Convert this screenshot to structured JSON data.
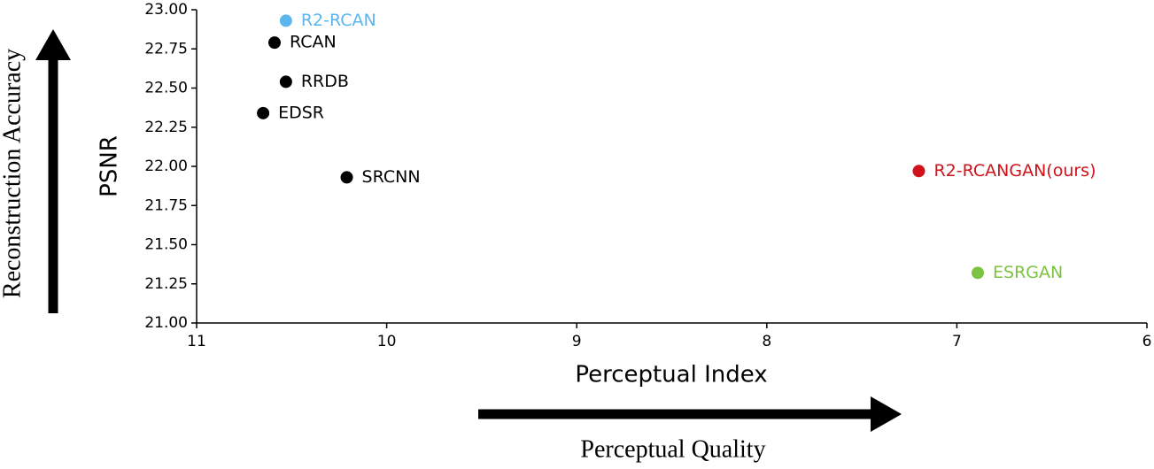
{
  "chart_data": {
    "type": "scatter",
    "xlabel": "Perceptual Index",
    "ylabel": "PSNR",
    "annotations": [
      "Reconstruction Accuracy",
      "Perceptual Quality"
    ],
    "xlim": [
      11,
      6
    ],
    "xticks": [
      11,
      10,
      9,
      8,
      7,
      6
    ],
    "ylim": [
      21,
      23
    ],
    "yticks": [
      {
        "value": 21,
        "label": "21.00"
      },
      {
        "value": 21.25,
        "label": "21.25"
      },
      {
        "value": 21.5,
        "label": "21.50"
      },
      {
        "value": 21.75,
        "label": "21.75"
      },
      {
        "value": 22,
        "label": "22.00"
      },
      {
        "value": 22.25,
        "label": "22.25"
      },
      {
        "value": 22.5,
        "label": "22.50"
      },
      {
        "value": 22.75,
        "label": "22.75"
      },
      {
        "value": 23,
        "label": "23.00"
      }
    ],
    "series": [
      {
        "name": "R2-RCAN",
        "color": "#5cb6ee",
        "x": [
          10.53
        ],
        "values": [
          22.93
        ]
      },
      {
        "name": "RCAN",
        "color": "#000000",
        "x": [
          10.59
        ],
        "values": [
          22.79
        ]
      },
      {
        "name": "RRDB",
        "color": "#000000",
        "x": [
          10.53
        ],
        "values": [
          22.54
        ]
      },
      {
        "name": "EDSR",
        "color": "#000000",
        "x": [
          10.65
        ],
        "values": [
          22.34
        ]
      },
      {
        "name": "SRCNN",
        "color": "#000000",
        "x": [
          10.21
        ],
        "values": [
          21.93
        ]
      },
      {
        "name": "R2-RCANGAN(ours)",
        "color": "#d0121b",
        "x": [
          7.2
        ],
        "values": [
          21.97
        ]
      },
      {
        "name": "ESRGAN",
        "color": "#7cc243",
        "x": [
          6.89
        ],
        "values": [
          21.32
        ]
      }
    ]
  }
}
